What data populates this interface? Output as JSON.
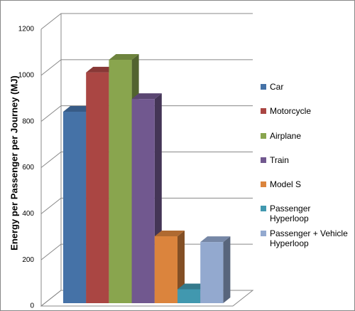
{
  "chart_data": {
    "type": "bar3d",
    "y_label": "Energy per Passenger per Journey (MJ)",
    "categories": [
      "Car",
      "Motorcycle",
      "Airplane",
      "Train",
      "Model S",
      "Passenger Hyperloop",
      "Passenger + Vehicle Hyperloop"
    ],
    "values": [
      830,
      1000,
      1055,
      885,
      290,
      60,
      265
    ],
    "colors": [
      "#4572a7",
      "#aa4643",
      "#89a54e",
      "#71588f",
      "#db843d",
      "#4198af",
      "#93a9cf"
    ],
    "ylim": [
      0,
      1200
    ],
    "yticks": [
      0,
      200,
      400,
      600,
      800,
      1000,
      1200
    ],
    "grid": true,
    "legend": "right"
  }
}
